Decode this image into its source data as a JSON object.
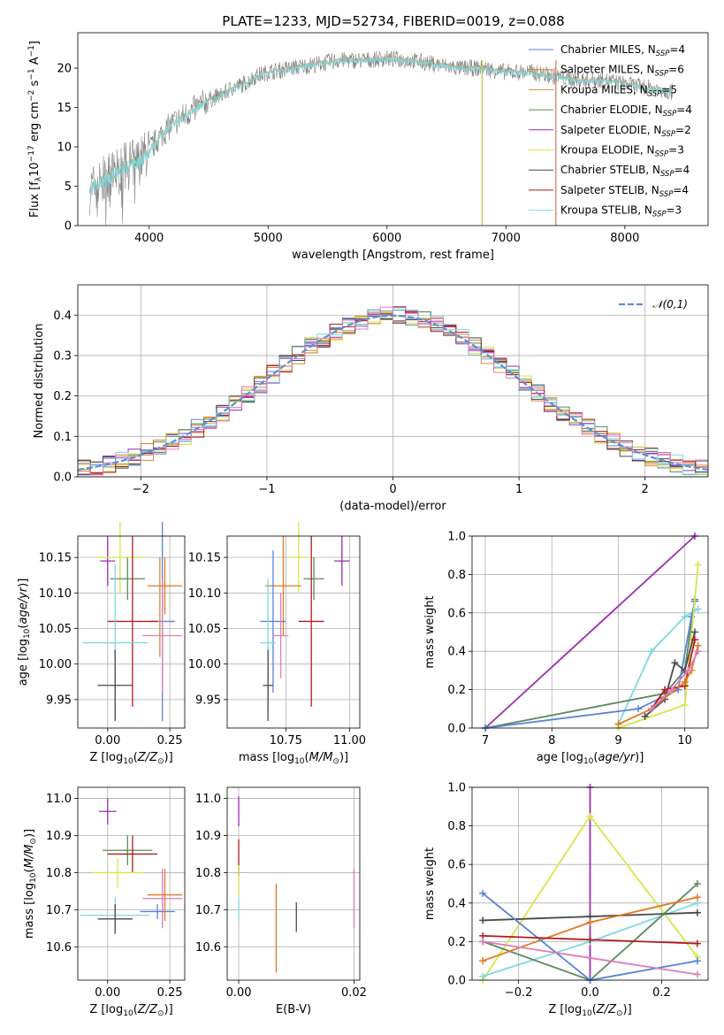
{
  "figure_title": "PLATE=1233, MJD=52734, FIBERID=0019, z=0.088",
  "colors": {
    "Chabrier MILES": "#5b82d6",
    "Salpeter MILES": "#e07a1f",
    "Kroupa MILES": "#d48a3a",
    "Chabrier ELODIE": "#5a8a5a",
    "Salpeter ELODIE": "#9b2fb0",
    "Kroupa ELODIE": "#d7e64a",
    "Chabrier STELIB": "#4a4a4a",
    "Salpeter STELIB": "#b01c1c",
    "Kroupa STELIB": "#7fd8e0",
    "pink": "#e07ab8",
    "gauss": "#5b8fd8"
  },
  "chart_data": [
    {
      "id": "spectrum",
      "type": "line",
      "title": "PLATE=1233, MJD=52734, FIBERID=0019, z=0.088",
      "xlabel": "wavelength [Angstrom, rest frame]",
      "ylabel": "Flux [f_λ 10^-17 erg cm^-2 s^-1 A^-1]",
      "xlim": [
        3400,
        8700
      ],
      "ylim": [
        0,
        24.5
      ],
      "xticks": [
        "4000",
        "5000",
        "6000",
        "7000",
        "8000"
      ],
      "yticks": [
        "0",
        "5",
        "10",
        "15",
        "20"
      ],
      "spectrum_x": [
        3500,
        3600,
        3700,
        3800,
        3900,
        4000,
        4100,
        4200,
        4300,
        4400,
        4500,
        4600,
        4700,
        4800,
        4900,
        5000,
        5200,
        5400,
        5600,
        5800,
        6000,
        6200,
        6400,
        6600,
        6800,
        7000,
        7200,
        7400,
        7600,
        7800,
        8000,
        8200,
        8400
      ],
      "spectrum_y": [
        4.5,
        5.5,
        6.5,
        7.5,
        8.0,
        9.5,
        11.5,
        13.0,
        14.0,
        15.0,
        16.0,
        16.5,
        17.5,
        18.0,
        19.0,
        19.5,
        20.0,
        20.5,
        21.0,
        21.0,
        21.2,
        21.0,
        20.5,
        20.0,
        20.0,
        19.5,
        19.5,
        19.0,
        18.5,
        18.5,
        18.0,
        17.5,
        17.0
      ],
      "legend": [
        {
          "label": "Chabrier MILES, N",
          "sub": "SSP",
          "suffix": "=4"
        },
        {
          "label": "Salpeter MILES, N",
          "sub": "SSP",
          "suffix": "=6"
        },
        {
          "label": "Kroupa MILES, N",
          "sub": "SSP",
          "suffix": "=5"
        },
        {
          "label": "Chabrier ELODIE, N",
          "sub": "SSP",
          "suffix": "=4"
        },
        {
          "label": "Salpeter ELODIE, N",
          "sub": "SSP",
          "suffix": "=2"
        },
        {
          "label": "Kroupa ELODIE, N",
          "sub": "SSP",
          "suffix": "=3"
        },
        {
          "label": "Chabrier STELIB, N",
          "sub": "SSP",
          "suffix": "=4"
        },
        {
          "label": "Salpeter STELIB, N",
          "sub": "SSP",
          "suffix": "=4"
        },
        {
          "label": "Kroupa STELIB, N",
          "sub": "SSP",
          "suffix": "=3"
        }
      ],
      "legend_placement": "right"
    },
    {
      "id": "residuals",
      "type": "line",
      "xlabel": "(data-model)/error",
      "ylabel": "Normed distribution",
      "xlim": [
        -2.5,
        2.5
      ],
      "ylim": [
        0,
        0.475
      ],
      "xticks": [
        "−2",
        "−1",
        "0",
        "1",
        "2"
      ],
      "yticks": [
        "0.0",
        "0.1",
        "0.2",
        "0.3",
        "0.4"
      ],
      "grid": true,
      "legend": "𝒩(0,1)",
      "legend_placement": "top-right",
      "bin_width": 0.1
    },
    {
      "id": "age_vs_Z",
      "type": "scatter",
      "xlabel": "Z [log10(Z/Z⊙)]",
      "ylabel": "age [log10(age/yr)]",
      "xlim": [
        -0.12,
        0.31
      ],
      "ylim": [
        9.91,
        10.18
      ],
      "xticks": [
        "0.00",
        "0.25"
      ],
      "yticks": [
        "9.95",
        "10.00",
        "10.05",
        "10.10",
        "10.15"
      ],
      "grid": true,
      "points": [
        {
          "c": "Salpeter ELODIE",
          "x": 0.0,
          "y": 10.145,
          "xe": 0.03,
          "ye": 0.035
        },
        {
          "c": "Kroupa ELODIE",
          "x": 0.05,
          "y": 10.15,
          "xe": 0.1,
          "ye": 0.05
        },
        {
          "c": "Chabrier ELODIE",
          "x": 0.08,
          "y": 10.12,
          "xe": 0.07,
          "ye": 0.03
        },
        {
          "c": "Salpeter MILES",
          "x": 0.23,
          "y": 10.11,
          "xe": 0.07,
          "ye": 0.04
        },
        {
          "c": "Chabrier MILES",
          "x": 0.22,
          "y": 10.06,
          "xe": 0.05,
          "ye": 0.14
        },
        {
          "c": "Salpeter STELIB",
          "x": 0.1,
          "y": 10.06,
          "xe": 0.1,
          "ye": 0.12
        },
        {
          "c": "pink",
          "x": 0.22,
          "y": 10.04,
          "xe": 0.08,
          "ye": 0.08
        },
        {
          "c": "Kroupa STELIB",
          "x": 0.03,
          "y": 10.03,
          "xe": 0.13,
          "ye": 0.11
        },
        {
          "c": "Kroupa MILES",
          "x": 0.21,
          "y": 10.08,
          "xe": 0.0,
          "ye": 0.07
        },
        {
          "c": "Chabrier STELIB",
          "x": 0.03,
          "y": 9.97,
          "xe": 0.07,
          "ye": 0.05
        }
      ]
    },
    {
      "id": "age_vs_mass",
      "type": "scatter",
      "xlabel": "mass [log10(M/M⊙)]",
      "xlim": [
        10.52,
        11.04
      ],
      "ylim": [
        9.91,
        10.18
      ],
      "xticks": [
        "10.75",
        "11.00"
      ],
      "yticks": [
        "9.95",
        "10.00",
        "10.05",
        "10.10",
        "10.15"
      ],
      "grid": true,
      "points": [
        {
          "c": "Salpeter ELODIE",
          "x": 10.97,
          "y": 10.145,
          "xe": 0.03,
          "ye": 0.035
        },
        {
          "c": "Kroupa ELODIE",
          "x": 10.8,
          "y": 10.15,
          "xe": 0.04,
          "ye": 0.05
        },
        {
          "c": "Chabrier ELODIE",
          "x": 10.86,
          "y": 10.12,
          "xe": 0.04,
          "ye": 0.03
        },
        {
          "c": "Salpeter MILES",
          "x": 10.74,
          "y": 10.11,
          "xe": 0.07,
          "ye": 0.07
        },
        {
          "c": "Chabrier MILES",
          "x": 10.7,
          "y": 10.06,
          "xe": 0.05,
          "ye": 0.1
        },
        {
          "c": "Salpeter STELIB",
          "x": 10.85,
          "y": 10.06,
          "xe": 0.05,
          "ye": 0.12
        },
        {
          "c": "pink",
          "x": 10.73,
          "y": 10.04,
          "xe": 0.03,
          "ye": 0.06
        },
        {
          "c": "Kroupa STELIB",
          "x": 10.68,
          "y": 10.03,
          "xe": 0.03,
          "ye": 0.09
        },
        {
          "c": "Chabrier STELIB",
          "x": 10.68,
          "y": 9.97,
          "xe": 0.02,
          "ye": 0.05
        }
      ]
    },
    {
      "id": "mass_weight_vs_age",
      "type": "line",
      "xlabel": "age [log10(age/yr)]",
      "ylabel": "mass weight",
      "xlim": [
        6.8,
        10.35
      ],
      "ylim": [
        0,
        1.0
      ],
      "xticks": [
        "7",
        "8",
        "9",
        "10"
      ],
      "yticks": [
        "0.0",
        "0.2",
        "0.4",
        "0.6",
        "0.8",
        "1.0"
      ],
      "grid": true,
      "series": [
        {
          "c": "Salpeter ELODIE",
          "x": [
            7.0,
            10.15
          ],
          "y": [
            0.0,
            1.0
          ]
        },
        {
          "c": "Kroupa STELIB",
          "x": [
            9.0,
            9.5,
            10.0,
            10.2
          ],
          "y": [
            0.02,
            0.4,
            0.58,
            0.62
          ]
        },
        {
          "c": "Chabrier ELODIE",
          "x": [
            7.0,
            9.7,
            10.0,
            10.15
          ],
          "y": [
            0.0,
            0.18,
            0.3,
            0.67
          ]
        },
        {
          "c": "Chabrier MILES",
          "x": [
            7.0,
            9.3,
            9.9,
            10.1,
            10.15
          ],
          "y": [
            0.0,
            0.1,
            0.2,
            0.58,
            0.66
          ]
        },
        {
          "c": "Kroupa ELODIE",
          "x": [
            9.0,
            10.0,
            10.2
          ],
          "y": [
            0.0,
            0.12,
            0.85
          ]
        },
        {
          "c": "Chabrier STELIB",
          "x": [
            9.4,
            9.7,
            9.85,
            10.0,
            10.15
          ],
          "y": [
            0.06,
            0.15,
            0.34,
            0.3,
            0.5
          ]
        },
        {
          "c": "Salpeter STELIB",
          "x": [
            9.5,
            9.7,
            10.0,
            10.15
          ],
          "y": [
            0.1,
            0.2,
            0.22,
            0.46
          ]
        },
        {
          "c": "Salpeter MILES",
          "x": [
            9.0,
            9.5,
            10.0,
            10.1,
            10.2
          ],
          "y": [
            0.02,
            0.1,
            0.24,
            0.3,
            0.43
          ]
        },
        {
          "c": "pink",
          "x": [
            9.5,
            9.8,
            10.05,
            10.2
          ],
          "y": [
            0.1,
            0.2,
            0.3,
            0.4
          ]
        }
      ]
    },
    {
      "id": "mass_vs_Z",
      "type": "scatter",
      "xlabel": "Z [log10(Z/Z⊙)]",
      "ylabel": "mass [log10(M/M⊙)]",
      "xlim": [
        -0.12,
        0.31
      ],
      "ylim": [
        10.51,
        11.03
      ],
      "xticks": [
        "0.00",
        "0.25"
      ],
      "yticks": [
        "10.6",
        "10.7",
        "10.8",
        "10.9",
        "11.0"
      ],
      "grid": true,
      "points": [
        {
          "c": "Salpeter ELODIE",
          "x": 0.0,
          "y": 10.965,
          "xe": 0.035,
          "ye": 0.035
        },
        {
          "c": "Chabrier ELODIE",
          "x": 0.08,
          "y": 10.86,
          "xe": 0.1,
          "ye": 0.04
        },
        {
          "c": "Salpeter STELIB",
          "x": 0.1,
          "y": 10.85,
          "xe": 0.1,
          "ye": 0.05
        },
        {
          "c": "Kroupa ELODIE",
          "x": 0.04,
          "y": 10.8,
          "xe": 0.1,
          "ye": 0.04
        },
        {
          "c": "Salpeter MILES",
          "x": 0.23,
          "y": 10.74,
          "xe": 0.07,
          "ye": 0.07
        },
        {
          "c": "pink",
          "x": 0.22,
          "y": 10.73,
          "xe": 0.08,
          "ye": 0.08
        },
        {
          "c": "Chabrier MILES",
          "x": 0.2,
          "y": 10.695,
          "xe": 0.07,
          "ye": 0.02
        },
        {
          "c": "Kroupa STELIB",
          "x": 0.03,
          "y": 10.685,
          "xe": 0.14,
          "ye": 0.05
        },
        {
          "c": "Chabrier STELIB",
          "x": 0.03,
          "y": 10.675,
          "xe": 0.07,
          "ye": 0.04
        }
      ]
    },
    {
      "id": "mass_vs_EBV",
      "type": "scatter",
      "xlabel": "E(B-V)",
      "xlim": [
        -0.002,
        0.021
      ],
      "ylim": [
        10.51,
        11.03
      ],
      "xticks": [
        "0.00",
        "0.02"
      ],
      "yticks": [
        "10.6",
        "10.7",
        "10.8",
        "10.9",
        "11.0"
      ],
      "grid": true,
      "points": [
        {
          "c": "Salpeter ELODIE",
          "x": 0.0,
          "y": 10.965,
          "xe": 0.0,
          "ye": 0.04
        },
        {
          "c": "Salpeter STELIB",
          "x": 0.0,
          "y": 10.84,
          "xe": 0.0,
          "ye": 0.05
        },
        {
          "c": "Kroupa ELODIE",
          "x": 0.0,
          "y": 10.78,
          "xe": 0.0,
          "ye": 0.04
        },
        {
          "c": "Kroupa STELIB",
          "x": 0.0,
          "y": 10.7,
          "xe": 0.0,
          "ye": 0.03
        },
        {
          "c": "Salpeter MILES",
          "x": 0.0065,
          "y": 10.65,
          "xe": 0.0,
          "ye": 0.12
        },
        {
          "c": "Chabrier STELIB",
          "x": 0.01,
          "y": 10.68,
          "xe": 0.0,
          "ye": 0.04
        },
        {
          "c": "pink",
          "x": 0.02,
          "y": 10.73,
          "xe": 0.0,
          "ye": 0.08
        }
      ]
    },
    {
      "id": "mass_weight_vs_Z",
      "type": "line",
      "xlabel": "Z [log10(Z/Z⊙)]",
      "ylabel": "mass weight",
      "xlim": [
        -0.33,
        0.33
      ],
      "ylim": [
        0,
        1.0
      ],
      "xticks": [
        "−0.2",
        "0.0",
        "0.2"
      ],
      "yticks": [
        "0.0",
        "0.2",
        "0.4",
        "0.6",
        "0.8",
        "1.0"
      ],
      "grid": true,
      "series": [
        {
          "c": "Salpeter ELODIE",
          "x": [
            0.0,
            0.0
          ],
          "y": [
            0.0,
            1.0
          ]
        },
        {
          "c": "Kroupa ELODIE",
          "x": [
            -0.3,
            0.0,
            0.3
          ],
          "y": [
            0.0,
            0.85,
            0.12
          ]
        },
        {
          "c": "Kroupa STELIB",
          "x": [
            -0.3,
            0.0,
            0.3
          ],
          "y": [
            0.02,
            0.2,
            0.4
          ]
        },
        {
          "c": "Chabrier STELIB",
          "x": [
            -0.3,
            0.0,
            0.3
          ],
          "y": [
            0.31,
            0.33,
            0.35
          ]
        },
        {
          "c": "Chabrier ELODIE",
          "x": [
            -0.3,
            0.0,
            0.3
          ],
          "y": [
            0.2,
            0.0,
            0.5
          ]
        },
        {
          "c": "Salpeter MILES",
          "x": [
            -0.3,
            0.0,
            0.3
          ],
          "y": [
            0.1,
            0.3,
            0.43
          ]
        },
        {
          "c": "Chabrier MILES",
          "x": [
            -0.3,
            0.0,
            0.3
          ],
          "y": [
            0.45,
            0.0,
            0.1
          ]
        },
        {
          "c": "Salpeter STELIB",
          "x": [
            -0.3,
            0.0,
            0.3
          ],
          "y": [
            0.23,
            0.21,
            0.19
          ]
        },
        {
          "c": "pink",
          "x": [
            -0.3,
            0.3
          ],
          "y": [
            0.2,
            0.03
          ]
        }
      ]
    }
  ]
}
